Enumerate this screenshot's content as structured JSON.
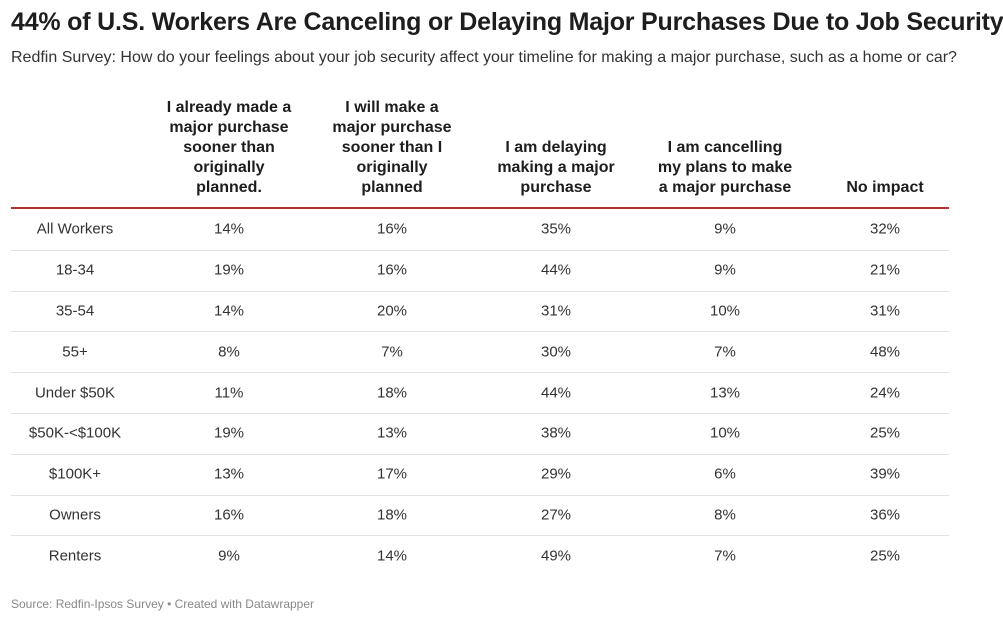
{
  "header": {
    "title": "44% of U.S. Workers Are Canceling or Delaying Major Purchases Due to Job Security",
    "subtitle": "Redfin Survey: How do your feelings about your job security affect your timeline for making a major purchase, such as a home or car?"
  },
  "table": {
    "columns": [
      "I already made a major purchase sooner than originally planned.",
      "I will make a major purchase sooner than I originally planned",
      "I am delaying making a major purchase",
      "I am cancelling my plans to make a major purchase",
      "No impact"
    ],
    "rows": [
      [
        "All Workers",
        "14%",
        "16%",
        "35%",
        "9%",
        "32%"
      ],
      [
        "18-34",
        "19%",
        "16%",
        "44%",
        "9%",
        "21%"
      ],
      [
        "35-54",
        "14%",
        "20%",
        "31%",
        "10%",
        "31%"
      ],
      [
        "55+",
        "8%",
        "7%",
        "30%",
        "7%",
        "48%"
      ],
      [
        "Under $50K",
        "11%",
        "18%",
        "44%",
        "13%",
        "24%"
      ],
      [
        "$50K-<$100K",
        "19%",
        "13%",
        "38%",
        "10%",
        "25%"
      ],
      [
        "$100K+",
        "13%",
        "17%",
        "29%",
        "6%",
        "39%"
      ],
      [
        "Owners",
        "16%",
        "18%",
        "27%",
        "8%",
        "36%"
      ],
      [
        "Renters",
        "9%",
        "14%",
        "49%",
        "7%",
        "25%"
      ]
    ]
  },
  "footer": {
    "source": "Source: Redfin-Ipsos Survey • Created with Datawrapper"
  }
}
